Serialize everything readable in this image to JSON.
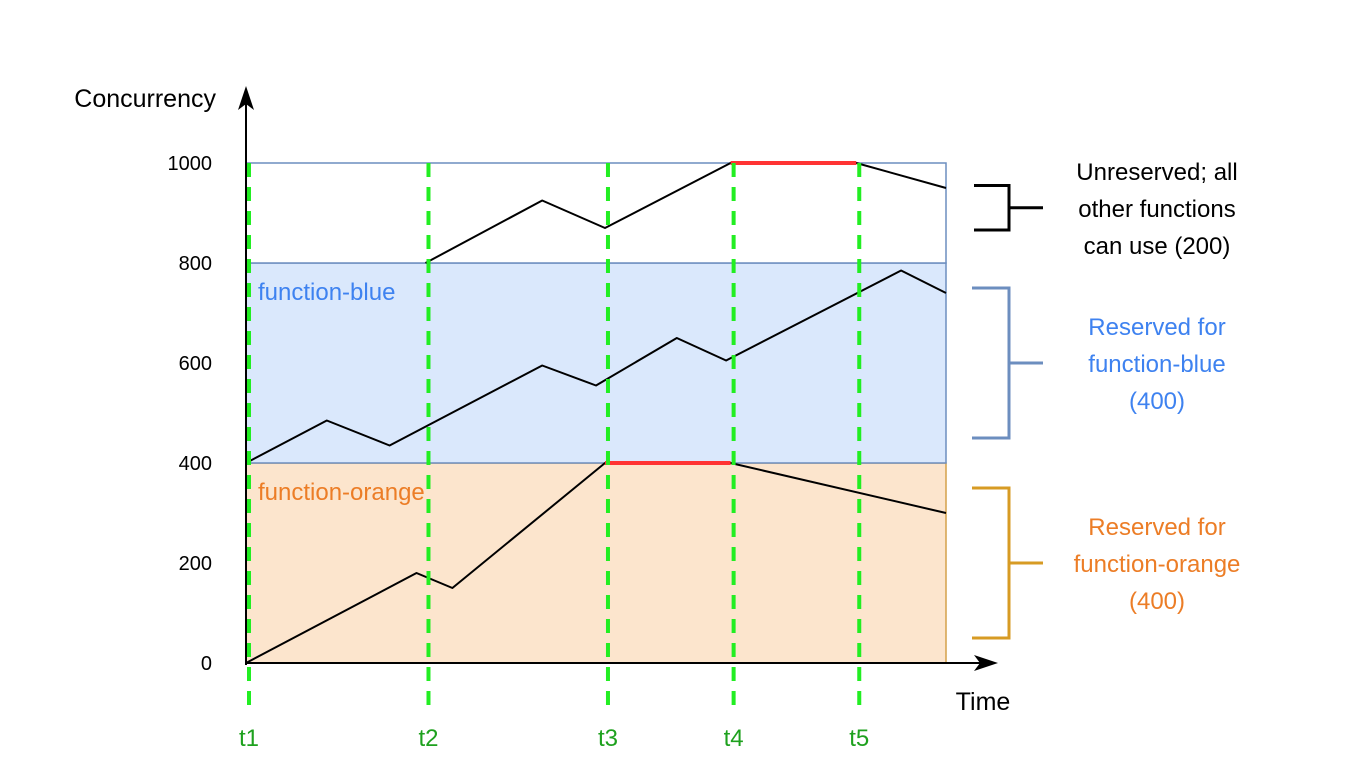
{
  "axes": {
    "y_label": "Concurrency",
    "x_label": "Time",
    "y_ticks": [
      {
        "value": 0,
        "label": "0"
      },
      {
        "value": 200,
        "label": "200"
      },
      {
        "value": 400,
        "label": "400"
      },
      {
        "value": 600,
        "label": "600"
      },
      {
        "value": 800,
        "label": "800"
      },
      {
        "value": 1000,
        "label": "1000"
      }
    ],
    "y_range": [
      0,
      1000
    ],
    "x_range": [
      0,
      7.8
    ]
  },
  "time_markers": [
    {
      "label": "t1",
      "x": 0
    },
    {
      "label": "t2",
      "x": 2
    },
    {
      "label": "t3",
      "x": 4
    },
    {
      "label": "t4",
      "x": 5.4
    },
    {
      "label": "t5",
      "x": 6.8
    }
  ],
  "regions": [
    {
      "name": "function-orange",
      "label": "function-orange",
      "from": 0,
      "to": 400,
      "fill": "#fce5cd",
      "border": "#d4a04a",
      "text_color": "#ec7d26"
    },
    {
      "name": "function-blue",
      "label": "function-blue",
      "from": 400,
      "to": 800,
      "fill": "#dae8fc",
      "border": "#6c8ebf",
      "text_color": "#3e82f0"
    },
    {
      "name": "unreserved",
      "label": "",
      "from": 800,
      "to": 1000,
      "fill": "#ffffff",
      "border": "#6c8ebf",
      "text_color": "#000000"
    }
  ],
  "brackets": [
    {
      "name": "unreserved",
      "lines": [
        "Unreserved; all",
        "other functions",
        "can use (200)"
      ],
      "color": "#000000",
      "text_color": "#000000",
      "from": 866,
      "to": 955
    },
    {
      "name": "blue",
      "lines": [
        "Reserved for",
        "function-blue",
        "(400)"
      ],
      "color": "#6c8ebf",
      "text_color": "#3e82f0",
      "from": 450,
      "to": 750
    },
    {
      "name": "orange",
      "lines": [
        "Reserved for",
        "function-orange",
        "(400)"
      ],
      "color": "#d79b24",
      "text_color": "#ec7d26",
      "from": 50,
      "to": 350
    }
  ],
  "colors": {
    "marker": "#22ee22",
    "throttle": "#ff3333",
    "curve": "#000000"
  },
  "chart_data": {
    "type": "line",
    "title": "",
    "xlabel": "Time",
    "ylabel": "Concurrency",
    "ylim": [
      0,
      1000
    ],
    "series": [
      {
        "name": "function-orange",
        "points": [
          [
            0,
            0
          ],
          [
            1.9,
            180
          ],
          [
            2.3,
            150
          ],
          [
            4,
            400
          ],
          [
            5.4,
            400
          ],
          [
            7.8,
            300
          ]
        ]
      },
      {
        "name": "function-blue",
        "points": [
          [
            0,
            400
          ],
          [
            0.9,
            485
          ],
          [
            1.6,
            435
          ],
          [
            3.3,
            595
          ],
          [
            3.9,
            555
          ],
          [
            4.8,
            650
          ],
          [
            5.35,
            605
          ],
          [
            7.3,
            785
          ],
          [
            7.8,
            740
          ]
        ]
      },
      {
        "name": "unreserved",
        "points": [
          [
            2,
            800
          ],
          [
            3.3,
            925
          ],
          [
            4,
            870
          ],
          [
            5.4,
            1000
          ],
          [
            6.8,
            1000
          ],
          [
            7.8,
            950
          ]
        ]
      }
    ],
    "throttled_segments": [
      {
        "from": 4,
        "to": 5.4,
        "y": 400
      },
      {
        "from": 5.4,
        "to": 6.8,
        "y": 1000
      }
    ]
  }
}
